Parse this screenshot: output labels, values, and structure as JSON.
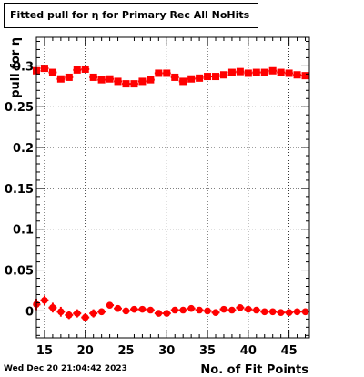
{
  "title": "Fitted pull for η for Primary Rec All NoHits",
  "timestamp": "Wed Dec 20 21:04:42 2023",
  "chart_data": {
    "type": "scatter",
    "title": "Fitted pull for η for Primary Rec All NoHits",
    "xlabel": "No. of Fit Points",
    "ylabel": "pull for η",
    "xlim": [
      14,
      47.5
    ],
    "ylim": [
      -0.033,
      0.335
    ],
    "grid": true,
    "x_ticks": [
      15,
      20,
      25,
      30,
      35,
      40,
      45
    ],
    "y_ticks": [
      0,
      0.05,
      0.1,
      0.15,
      0.2,
      0.25,
      0.3
    ],
    "y_tick_labels": [
      "0",
      "0.05",
      "0.1",
      "0.15",
      "0.2",
      "0.25",
      "0.3"
    ],
    "color": "#ff0000",
    "series": [
      {
        "x": [
          14,
          15,
          16,
          17,
          18,
          19,
          20,
          21,
          22,
          23,
          24,
          25,
          26,
          27,
          28,
          29,
          30,
          31,
          32,
          33,
          34,
          35,
          36,
          37,
          38,
          39,
          40,
          41,
          42,
          43,
          44,
          45,
          46,
          47
        ],
        "y": [
          0.294,
          0.297,
          0.292,
          0.284,
          0.286,
          0.295,
          0.296,
          0.286,
          0.283,
          0.284,
          0.281,
          0.278,
          0.278,
          0.281,
          0.283,
          0.291,
          0.291,
          0.286,
          0.281,
          0.284,
          0.285,
          0.287,
          0.287,
          0.289,
          0.292,
          0.293,
          0.291,
          0.292,
          0.292,
          0.294,
          0.292,
          0.291,
          0.289,
          0.288
        ],
        "yerr": [
          0.003,
          0.003,
          0.003,
          0.003,
          0.003,
          0.003,
          0.003,
          0.003,
          0.003,
          0.003,
          0.003,
          0.003,
          0.003,
          0.003,
          0.003,
          0.003,
          0.003,
          0.003,
          0.003,
          0.003,
          0.003,
          0.003,
          0.003,
          0.003,
          0.003,
          0.003,
          0.003,
          0.003,
          0.003,
          0.003,
          0.003,
          0.003,
          0.003,
          0.003
        ]
      },
      {
        "x": [
          14,
          15,
          16,
          17,
          18,
          19,
          20,
          21,
          22,
          23,
          24,
          25,
          26,
          27,
          28,
          29,
          30,
          31,
          32,
          33,
          34,
          35,
          36,
          37,
          38,
          39,
          40,
          41,
          42,
          43,
          44,
          45,
          46,
          47
        ],
        "y": [
          0.008,
          0.013,
          0.004,
          -0.001,
          -0.005,
          -0.003,
          -0.008,
          -0.003,
          -0.001,
          0.007,
          0.003,
          0.0,
          0.002,
          0.002,
          0.001,
          -0.003,
          -0.003,
          0.001,
          0.001,
          0.003,
          0.001,
          0.0,
          -0.002,
          0.002,
          0.001,
          0.004,
          0.002,
          0.001,
          -0.001,
          -0.001,
          -0.002,
          -0.002,
          -0.001,
          -0.001
        ],
        "yerr": [
          0.007,
          0.006,
          0.006,
          0.006,
          0.005,
          0.005,
          0.005,
          0.005,
          0.004,
          0.004,
          0.004,
          0.004,
          0.004,
          0.003,
          0.003,
          0.003,
          0.003,
          0.003,
          0.003,
          0.003,
          0.003,
          0.003,
          0.003,
          0.003,
          0.003,
          0.003,
          0.003,
          0.003,
          0.003,
          0.003,
          0.003,
          0.003,
          0.003,
          0.003
        ]
      }
    ]
  }
}
